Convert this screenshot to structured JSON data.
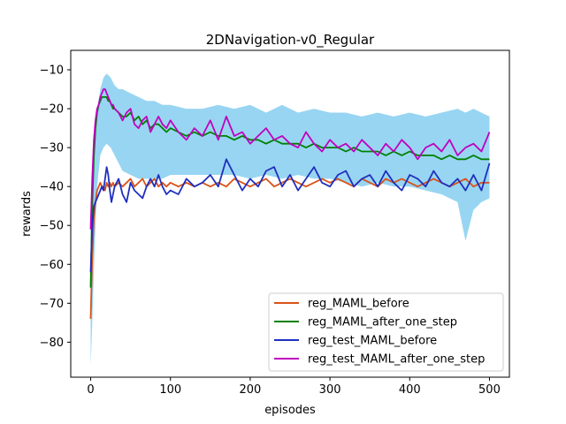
{
  "chart_data": {
    "type": "line",
    "title": "2DNavigation-v0_Regular",
    "xlabel": "episodes",
    "ylabel": "rewards",
    "xlim": [
      -25,
      525
    ],
    "ylim": [
      -89,
      -5
    ],
    "xticks": [
      0,
      100,
      200,
      300,
      400,
      500
    ],
    "yticks": [
      -80,
      -70,
      -60,
      -50,
      -40,
      -30,
      -20,
      -10
    ],
    "grid": false,
    "legend_position": "lower right",
    "band": {
      "series": "reg_test_MAML_after_one_step",
      "color": "#1ba1e2",
      "x": [
        0,
        2,
        5,
        8,
        12,
        16,
        20,
        25,
        30,
        35,
        40,
        50,
        60,
        70,
        80,
        90,
        100,
        120,
        140,
        160,
        180,
        200,
        220,
        240,
        260,
        280,
        300,
        320,
        340,
        360,
        380,
        400,
        420,
        440,
        460,
        470,
        480,
        490,
        500
      ],
      "upper": [
        -45,
        -38,
        -28,
        -20,
        -15,
        -12,
        -11,
        -12,
        -14,
        -15,
        -15,
        -16,
        -17,
        -18,
        -18,
        -19,
        -19,
        -20,
        -20,
        -19,
        -20,
        -19,
        -21,
        -19,
        -21,
        -20,
        -21,
        -21,
        -22,
        -21,
        -22,
        -21,
        -22,
        -21,
        -20,
        -21,
        -20,
        -21,
        -22
      ],
      "lower": [
        -86,
        -75,
        -55,
        -40,
        -32,
        -30,
        -29,
        -30,
        -32,
        -34,
        -36,
        -37,
        -38,
        -38,
        -38,
        -38,
        -37,
        -37,
        -37,
        -37,
        -37,
        -38,
        -37,
        -38,
        -37,
        -38,
        -38,
        -39,
        -40,
        -39,
        -40,
        -40,
        -41,
        -42,
        -44,
        -54,
        -46,
        -44,
        -43
      ]
    },
    "x": [
      0,
      2,
      4,
      6,
      8,
      10,
      12,
      14,
      16,
      18,
      20,
      22,
      24,
      26,
      28,
      30,
      35,
      40,
      45,
      50,
      55,
      60,
      65,
      70,
      75,
      80,
      85,
      90,
      95,
      100,
      110,
      120,
      130,
      140,
      150,
      160,
      170,
      180,
      190,
      200,
      210,
      220,
      230,
      240,
      250,
      260,
      270,
      280,
      290,
      300,
      310,
      320,
      330,
      340,
      350,
      360,
      370,
      380,
      390,
      400,
      410,
      420,
      430,
      440,
      450,
      460,
      470,
      480,
      490,
      500
    ],
    "series": [
      {
        "name": "reg_MAML_before",
        "color": "#d95319",
        "values": [
          -74,
          -58,
          -48,
          -44,
          -41,
          -40,
          -39,
          -40,
          -40,
          -41,
          -39,
          -40,
          -39,
          -40,
          -39,
          -40,
          -39,
          -40,
          -39,
          -38,
          -40,
          -39,
          -38,
          -40,
          -39,
          -38,
          -40,
          -39,
          -40,
          -39,
          -40,
          -39,
          -40,
          -39,
          -40,
          -39,
          -40,
          -38,
          -39,
          -40,
          -39,
          -38,
          -40,
          -39,
          -38,
          -39,
          -40,
          -39,
          -38,
          -39,
          -38,
          -39,
          -40,
          -38,
          -39,
          -40,
          -38,
          -39,
          -38,
          -39,
          -40,
          -39,
          -38,
          -39,
          -40,
          -39,
          -38,
          -40,
          -39,
          -39
        ]
      },
      {
        "name": "reg_MAML_after_one_step",
        "color": "#008000",
        "values": [
          -66,
          -45,
          -32,
          -25,
          -21,
          -19,
          -18,
          -17,
          -17,
          -17,
          -17,
          -18,
          -18,
          -19,
          -20,
          -20,
          -21,
          -22,
          -22,
          -21,
          -23,
          -22,
          -24,
          -23,
          -25,
          -24,
          -24,
          -25,
          -26,
          -25,
          -26,
          -27,
          -26,
          -27,
          -26,
          -27,
          -27,
          -28,
          -27,
          -28,
          -28,
          -29,
          -28,
          -29,
          -29,
          -29,
          -30,
          -29,
          -30,
          -30,
          -30,
          -31,
          -30,
          -31,
          -31,
          -31,
          -32,
          -31,
          -32,
          -31,
          -32,
          -32,
          -32,
          -33,
          -32,
          -33,
          -33,
          -32,
          -33,
          -33
        ]
      },
      {
        "name": "reg_test_MAML_before",
        "color": "#1f2fbf",
        "values": [
          -62,
          -50,
          -45,
          -44,
          -43,
          -42,
          -41,
          -40,
          -41,
          -38,
          -35,
          -37,
          -41,
          -44,
          -42,
          -40,
          -38,
          -42,
          -44,
          -39,
          -41,
          -42,
          -43,
          -40,
          -38,
          -40,
          -37,
          -40,
          -42,
          -41,
          -42,
          -38,
          -40,
          -39,
          -37,
          -40,
          -33,
          -37,
          -41,
          -38,
          -40,
          -36,
          -35,
          -40,
          -37,
          -41,
          -38,
          -35,
          -39,
          -40,
          -37,
          -36,
          -40,
          -38,
          -37,
          -40,
          -36,
          -39,
          -41,
          -37,
          -38,
          -40,
          -36,
          -39,
          -40,
          -38,
          -41,
          -37,
          -41,
          -34
        ]
      },
      {
        "name": "reg_test_MAML_after_one_step",
        "color": "#c000c0",
        "values": [
          -51,
          -38,
          -28,
          -23,
          -20,
          -19,
          -17,
          -16,
          -15,
          -15,
          -16,
          -17,
          -18,
          -19,
          -19,
          -20,
          -21,
          -23,
          -21,
          -20,
          -24,
          -25,
          -23,
          -22,
          -26,
          -24,
          -22,
          -24,
          -25,
          -23,
          -26,
          -28,
          -25,
          -27,
          -23,
          -28,
          -22,
          -27,
          -26,
          -29,
          -27,
          -25,
          -28,
          -27,
          -29,
          -30,
          -26,
          -29,
          -31,
          -28,
          -30,
          -29,
          -31,
          -28,
          -30,
          -32,
          -29,
          -31,
          -28,
          -30,
          -33,
          -30,
          -29,
          -31,
          -28,
          -32,
          -30,
          -29,
          -31,
          -26
        ]
      }
    ]
  }
}
